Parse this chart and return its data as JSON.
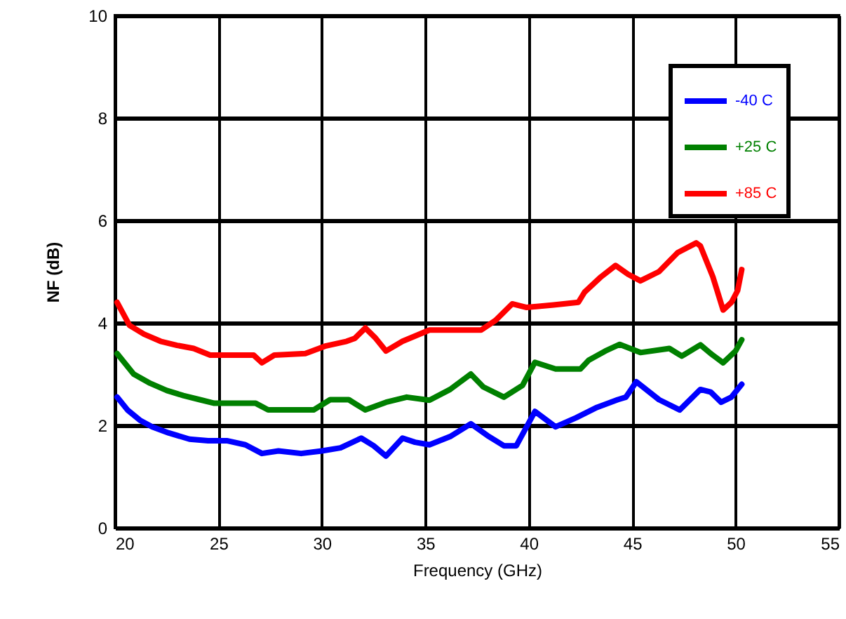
{
  "chart_data": {
    "type": "line",
    "xlabel": "Frequency (GHz)",
    "ylabel": "NF (dB)",
    "xlim": [
      20,
      55
    ],
    "xticks": [
      20,
      25,
      30,
      35,
      40,
      45,
      50,
      55
    ],
    "ylim": [
      0,
      10
    ],
    "yticks": [
      0,
      2,
      4,
      6,
      8,
      10
    ],
    "grid": true,
    "legend": "top right",
    "line_style": "solid",
    "marker": "none",
    "series": [
      {
        "name": "-40 C",
        "color": "#0000ff",
        "x": [
          20.1,
          20.6,
          21.2,
          21.8,
          22.6,
          23.6,
          24.5,
          25.4,
          26.3,
          27.1,
          27.9,
          29.0,
          30.0,
          30.9,
          31.9,
          32.5,
          33.1,
          33.9,
          34.5,
          35.2,
          36.2,
          37.2,
          38.0,
          38.8,
          39.4,
          40.3,
          41.3,
          42.3,
          43.3,
          44.3,
          44.7,
          45.2,
          46.3,
          47.3,
          48.3,
          48.8,
          49.3,
          49.8,
          50.3
        ],
        "values": [
          2.55,
          2.3,
          2.1,
          1.97,
          1.85,
          1.73,
          1.7,
          1.7,
          1.62,
          1.45,
          1.5,
          1.45,
          1.5,
          1.56,
          1.75,
          1.6,
          1.4,
          1.75,
          1.67,
          1.62,
          1.78,
          2.03,
          1.8,
          1.6,
          1.6,
          2.27,
          1.97,
          2.15,
          2.35,
          2.5,
          2.55,
          2.85,
          2.5,
          2.3,
          2.7,
          2.65,
          2.45,
          2.55,
          2.8
        ]
      },
      {
        "name": "+25 C",
        "color": "#008000",
        "x": [
          20.1,
          20.9,
          21.7,
          22.5,
          23.3,
          24.1,
          24.8,
          25.8,
          26.8,
          27.4,
          28.5,
          29.6,
          30.4,
          31.3,
          32.1,
          33.1,
          34.1,
          35.2,
          36.2,
          37.2,
          37.8,
          38.8,
          39.7,
          40.3,
          41.3,
          42.5,
          42.9,
          43.7,
          44.4,
          45.4,
          46.8,
          47.4,
          48.3,
          48.8,
          49.4,
          50.0,
          50.3
        ],
        "values": [
          3.4,
          3.0,
          2.82,
          2.68,
          2.58,
          2.5,
          2.43,
          2.43,
          2.43,
          2.3,
          2.3,
          2.3,
          2.5,
          2.5,
          2.3,
          2.45,
          2.55,
          2.49,
          2.7,
          3.0,
          2.75,
          2.55,
          2.78,
          3.23,
          3.1,
          3.1,
          3.27,
          3.45,
          3.58,
          3.42,
          3.5,
          3.35,
          3.57,
          3.4,
          3.22,
          3.45,
          3.67
        ]
      },
      {
        "name": "+85 C",
        "color": "#ff0000",
        "x": [
          20.1,
          20.7,
          21.4,
          22.2,
          23.0,
          23.8,
          24.6,
          25.7,
          26.7,
          27.1,
          27.7,
          29.2,
          30.2,
          31.2,
          31.6,
          32.1,
          32.6,
          33.1,
          33.9,
          35.2,
          36.5,
          37.7,
          38.4,
          39.2,
          39.9,
          41.2,
          42.4,
          42.7,
          43.5,
          44.2,
          44.8,
          45.4,
          46.3,
          47.2,
          48.1,
          48.3,
          48.9,
          49.4,
          49.8,
          50.1,
          50.3
        ],
        "values": [
          4.4,
          3.95,
          3.78,
          3.64,
          3.56,
          3.5,
          3.37,
          3.37,
          3.37,
          3.22,
          3.37,
          3.4,
          3.55,
          3.64,
          3.7,
          3.9,
          3.7,
          3.45,
          3.64,
          3.86,
          3.86,
          3.86,
          4.05,
          4.37,
          4.3,
          4.35,
          4.4,
          4.6,
          4.9,
          5.12,
          4.95,
          4.82,
          5.0,
          5.37,
          5.56,
          5.5,
          4.9,
          4.25,
          4.4,
          4.63,
          5.04
        ]
      }
    ]
  }
}
